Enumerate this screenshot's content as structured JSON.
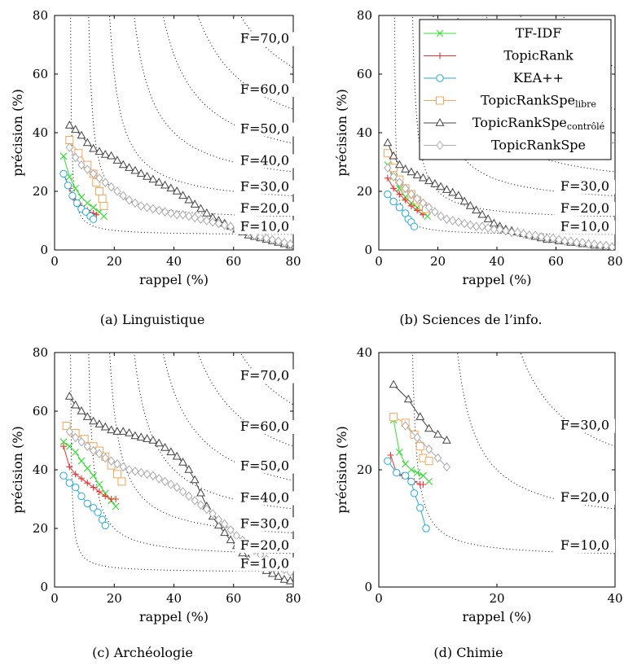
{
  "figure": {
    "series_styles": [
      {
        "key": "tfidf",
        "color": "#33dd33",
        "marker": "x"
      },
      {
        "key": "topicrank",
        "color": "#ee3333",
        "marker": "plus"
      },
      {
        "key": "kea",
        "color": "#22aadd",
        "marker": "circle"
      },
      {
        "key": "trs_libre",
        "color": "#f5a55a",
        "marker": "square"
      },
      {
        "key": "trs_controle",
        "color": "#444444",
        "marker": "triangle"
      },
      {
        "key": "trs",
        "color": "#aaaaaa",
        "marker": "diamond"
      }
    ],
    "legend": {
      "entries": [
        {
          "key": "tfidf",
          "label": "TF-IDF",
          "sub": ""
        },
        {
          "key": "topicrank",
          "label": "TopicRank",
          "sub": ""
        },
        {
          "key": "kea",
          "label": "KEA++",
          "sub": ""
        },
        {
          "key": "trs_libre",
          "label": "TopicRankSpe",
          "sub": "libre"
        },
        {
          "key": "trs_controle",
          "label": "TopicRankSpe",
          "sub": "contrôlé"
        },
        {
          "key": "trs",
          "label": "TopicRankSpe",
          "sub": ""
        }
      ]
    }
  },
  "chart_data": [
    {
      "type": "line",
      "caption": "(a) Linguistique",
      "xlabel": "rappel (%)",
      "ylabel": "précision (%)",
      "xlim": [
        0,
        80
      ],
      "ylim": [
        0,
        80
      ],
      "xticks": [
        0,
        20,
        40,
        60,
        80
      ],
      "yticks": [
        0,
        20,
        40,
        60,
        80
      ],
      "iso_f": [
        10,
        20,
        30,
        40,
        50,
        60,
        70
      ],
      "iso_f_labels": [
        "F=10,0",
        "F=20,0",
        "F=30,0",
        "F=40,0",
        "F=50,0",
        "F=60,0",
        "F=70,0"
      ],
      "series": [
        {
          "key": "tfidf",
          "x": [
            3,
            5,
            7,
            9,
            11,
            13,
            15,
            16.5
          ],
          "y": [
            32,
            25,
            21,
            18,
            16,
            14.5,
            13,
            11.5
          ]
        },
        {
          "key": "topicrank",
          "x": [
            3,
            5,
            7,
            9,
            11,
            13,
            14
          ],
          "y": [
            26,
            21,
            17,
            15,
            13.5,
            12.5,
            12
          ]
        },
        {
          "key": "kea",
          "x": [
            3,
            4.5,
            6,
            7.5,
            9,
            10.5,
            12,
            13
          ],
          "y": [
            26,
            22,
            18.5,
            16,
            14,
            13,
            11.5,
            10.5
          ]
        },
        {
          "key": "trs_libre",
          "x": [
            5,
            8,
            11,
            13,
            14,
            15,
            16,
            16.5
          ],
          "y": [
            37.5,
            33,
            29,
            26,
            23,
            20,
            17.5,
            15
          ]
        },
        {
          "key": "trs_controle",
          "x": [
            5,
            7,
            9,
            11,
            13,
            15,
            17,
            19,
            21,
            23,
            25,
            27,
            29,
            31,
            33,
            35,
            37,
            39,
            41,
            43,
            45,
            47,
            49,
            51,
            53,
            55,
            57,
            59,
            61,
            63,
            65,
            67,
            69,
            71,
            73,
            75,
            77,
            79
          ],
          "y": [
            42.5,
            41,
            39,
            36.5,
            34.5,
            33.5,
            32.5,
            32,
            30.5,
            29,
            28,
            27,
            26,
            25,
            24,
            23,
            22,
            21,
            20,
            18.5,
            17,
            15.5,
            14,
            12.5,
            11,
            10,
            9,
            8,
            7,
            6,
            5,
            4.5,
            4,
            3.5,
            3,
            2.5,
            2,
            1.5
          ]
        },
        {
          "key": "trs",
          "x": [
            5,
            7,
            9,
            11,
            13,
            15,
            17,
            19,
            21,
            23,
            25,
            27,
            29,
            31,
            33,
            35,
            37,
            39,
            41,
            43,
            45,
            47,
            49,
            51,
            53,
            55,
            57,
            59,
            61,
            63,
            65,
            67,
            69,
            71,
            73,
            75,
            77,
            79
          ],
          "y": [
            35,
            31.5,
            29,
            27.5,
            26,
            24.5,
            23,
            21.5,
            20,
            18.5,
            17,
            16,
            15,
            14.5,
            14,
            13.5,
            13,
            12.5,
            12,
            12,
            11.5,
            11,
            10.5,
            10,
            9.5,
            9,
            8.5,
            8,
            7,
            6.5,
            6,
            5,
            4.5,
            4,
            3.5,
            3,
            2.5,
            2
          ]
        }
      ]
    },
    {
      "type": "line",
      "caption": "(b) Sciences de l’info.",
      "xlabel": "rappel (%)",
      "ylabel": "précision (%)",
      "xlim": [
        0,
        80
      ],
      "ylim": [
        0,
        80
      ],
      "xticks": [
        0,
        20,
        40,
        60,
        80
      ],
      "yticks": [
        0,
        20,
        40,
        60,
        80
      ],
      "iso_f": [
        10,
        20,
        30,
        40,
        50,
        60,
        70
      ],
      "iso_f_labels": [
        "F=10,0",
        "F=20,0",
        "F=30,0",
        "",
        "",
        "",
        ""
      ],
      "series": [
        {
          "key": "tfidf",
          "x": [
            3,
            5,
            7,
            9,
            11,
            13,
            15,
            16.5
          ],
          "y": [
            29,
            25,
            21,
            18,
            16,
            14.5,
            13,
            11.5
          ]
        },
        {
          "key": "topicrank",
          "x": [
            3,
            5,
            7,
            9,
            11,
            13,
            15
          ],
          "y": [
            24.5,
            21,
            19,
            17,
            15,
            13.5,
            12
          ]
        },
        {
          "key": "kea",
          "x": [
            3,
            5,
            7,
            9,
            10,
            11,
            12
          ],
          "y": [
            19,
            16.5,
            14.5,
            12.5,
            10.5,
            9.5,
            8
          ]
        },
        {
          "key": "trs_libre",
          "x": [
            3,
            5,
            7,
            9,
            11,
            13,
            15,
            16
          ],
          "y": [
            33,
            28,
            24,
            21,
            19,
            17,
            15,
            14
          ]
        },
        {
          "key": "trs_controle",
          "x": [
            3,
            5,
            7,
            9,
            11,
            13,
            15,
            17,
            19,
            21,
            23,
            25,
            27,
            29,
            31,
            33,
            35,
            37,
            39,
            41,
            43,
            45,
            47,
            49,
            51,
            53,
            55,
            57,
            59,
            61,
            63,
            65,
            67,
            69,
            71,
            73,
            75,
            77,
            79
          ],
          "y": [
            36.5,
            32,
            29,
            27.5,
            26.5,
            25.5,
            24.5,
            23.5,
            22.5,
            21.5,
            20.5,
            19.5,
            18.5,
            16.5,
            15,
            13.5,
            12,
            10.5,
            9,
            8,
            7,
            6.5,
            6,
            5.5,
            5,
            4.5,
            4,
            3.5,
            3.5,
            3,
            3,
            2.5,
            2.5,
            2,
            2,
            1.5,
            1.5,
            1,
            1
          ]
        },
        {
          "key": "trs",
          "x": [
            3,
            5,
            7,
            9,
            11,
            13,
            15,
            17,
            19,
            21,
            23,
            25,
            27,
            29,
            31,
            33,
            35,
            37,
            39,
            41,
            43,
            45,
            47,
            49,
            51,
            53,
            55,
            57,
            59,
            61,
            63,
            65,
            67,
            69,
            71,
            73,
            75,
            77,
            79
          ],
          "y": [
            28,
            25,
            23,
            21,
            19,
            17.5,
            16,
            14.5,
            13,
            11.5,
            10.5,
            10,
            9.5,
            9,
            8.5,
            8,
            8,
            7.5,
            7,
            7,
            6.5,
            6,
            6,
            5.5,
            5,
            5,
            4.5,
            4,
            4,
            3.5,
            3,
            3,
            2.5,
            2.5,
            2,
            2,
            1.5,
            1.5,
            1
          ]
        }
      ]
    },
    {
      "type": "line",
      "caption": "(c) Archéologie",
      "xlabel": "rappel (%)",
      "ylabel": "précision (%)",
      "xlim": [
        0,
        80
      ],
      "ylim": [
        0,
        80
      ],
      "xticks": [
        0,
        20,
        40,
        60,
        80
      ],
      "yticks": [
        0,
        20,
        40,
        60,
        80
      ],
      "iso_f": [
        10,
        20,
        30,
        40,
        50,
        60,
        70
      ],
      "iso_f_labels": [
        "F=10,0",
        "F=20,0",
        "F=30,0",
        "F=40,0",
        "F=50,0",
        "F=60,0",
        "F=70,0"
      ],
      "series": [
        {
          "key": "tfidf",
          "x": [
            3,
            5,
            7,
            9,
            11,
            13,
            15,
            17,
            19,
            20.5
          ],
          "y": [
            49.5,
            48,
            46,
            43,
            40.5,
            38,
            35,
            32,
            29.5,
            27.5
          ]
        },
        {
          "key": "topicrank",
          "x": [
            3,
            5,
            7,
            9,
            11,
            13,
            15,
            17,
            19,
            20.5
          ],
          "y": [
            48,
            41,
            38.5,
            37,
            35.5,
            34,
            32.5,
            31,
            30,
            30
          ]
        },
        {
          "key": "kea",
          "x": [
            3,
            5,
            7,
            9,
            11,
            13,
            14.5,
            16,
            17
          ],
          "y": [
            38,
            35.5,
            34,
            31,
            28.5,
            27,
            25.5,
            23,
            21
          ]
        },
        {
          "key": "trs_libre",
          "x": [
            4,
            7,
            10,
            13,
            15,
            17,
            19,
            21,
            22.5
          ],
          "y": [
            55,
            52.5,
            50.5,
            48,
            46.5,
            44.5,
            41.5,
            38.5,
            36
          ]
        },
        {
          "key": "trs_controle",
          "x": [
            5,
            7,
            9,
            11,
            13,
            15,
            17,
            19,
            21,
            23,
            25,
            27,
            29,
            31,
            33,
            35,
            37,
            39,
            41,
            43,
            45,
            47,
            49,
            51,
            53,
            55,
            57,
            59,
            61,
            63,
            65,
            67,
            69,
            71,
            73,
            75,
            77,
            79
          ],
          "y": [
            65,
            62,
            60,
            58,
            56.5,
            55.5,
            54.5,
            53.5,
            53,
            53,
            52.5,
            51.5,
            51,
            50.5,
            50,
            49,
            47.5,
            46,
            44.5,
            42.5,
            40,
            36.5,
            32,
            27.5,
            24,
            21,
            18.5,
            16,
            14,
            11.5,
            9.5,
            8,
            6.5,
            5.5,
            4.5,
            3.5,
            2.5,
            2
          ]
        },
        {
          "key": "trs",
          "x": [
            5,
            7,
            9,
            11,
            13,
            15,
            17,
            19,
            21,
            23,
            25,
            27,
            29,
            31,
            33,
            35,
            37,
            39,
            41,
            43,
            45,
            47,
            49,
            51,
            53,
            55,
            57,
            59,
            61,
            63,
            65,
            67,
            69,
            71,
            73,
            75,
            77,
            79
          ],
          "y": [
            53,
            51,
            49.5,
            48,
            46.5,
            45.5,
            44,
            43,
            42,
            41,
            40,
            39.5,
            39,
            38.5,
            38,
            37,
            36,
            35,
            34,
            32.5,
            31,
            29.5,
            28,
            26.5,
            25,
            23,
            21.5,
            19.5,
            17.5,
            16,
            14,
            12.5,
            11,
            9.5,
            8,
            7,
            6,
            5
          ]
        }
      ]
    },
    {
      "type": "line",
      "caption": "(d) Chimie",
      "xlabel": "rappel (%)",
      "ylabel": "précision (%)",
      "xlim": [
        0,
        40
      ],
      "ylim": [
        0,
        40
      ],
      "xticks": [
        0,
        20,
        40
      ],
      "yticks": [
        0,
        20,
        40
      ],
      "iso_f": [
        10,
        20,
        30
      ],
      "iso_f_labels": [
        "F=10,0",
        "F=20,0",
        "F=30,0"
      ],
      "series": [
        {
          "key": "tfidf",
          "x": [
            2.5,
            3.5,
            4.5,
            5.5,
            6.5,
            7.5,
            8.5
          ],
          "y": [
            28.5,
            23,
            21,
            20,
            19.5,
            19,
            18
          ]
        },
        {
          "key": "topicrank",
          "x": [
            2,
            3,
            4,
            5,
            6,
            7,
            7.5
          ],
          "y": [
            22.5,
            19.5,
            19,
            18.5,
            18,
            17.5,
            17.5
          ]
        },
        {
          "key": "kea",
          "x": [
            1.5,
            3,
            4.5,
            5.5,
            6,
            7,
            8
          ],
          "y": [
            21.5,
            19.5,
            19,
            18,
            16,
            13.5,
            10
          ]
        },
        {
          "key": "trs_libre",
          "x": [
            2.5,
            4.5,
            6,
            7,
            7.5,
            8.5
          ],
          "y": [
            29,
            28,
            26,
            24,
            22,
            21.5
          ]
        },
        {
          "key": "trs_controle",
          "x": [
            2.5,
            5,
            7,
            8.5,
            10,
            11.5
          ],
          "y": [
            34.5,
            32,
            29,
            27,
            26,
            25
          ]
        },
        {
          "key": "trs",
          "x": [
            4.5,
            6.5,
            8.5,
            10,
            11.5
          ],
          "y": [
            27.5,
            25.5,
            23.5,
            22,
            20.5
          ]
        }
      ]
    }
  ]
}
